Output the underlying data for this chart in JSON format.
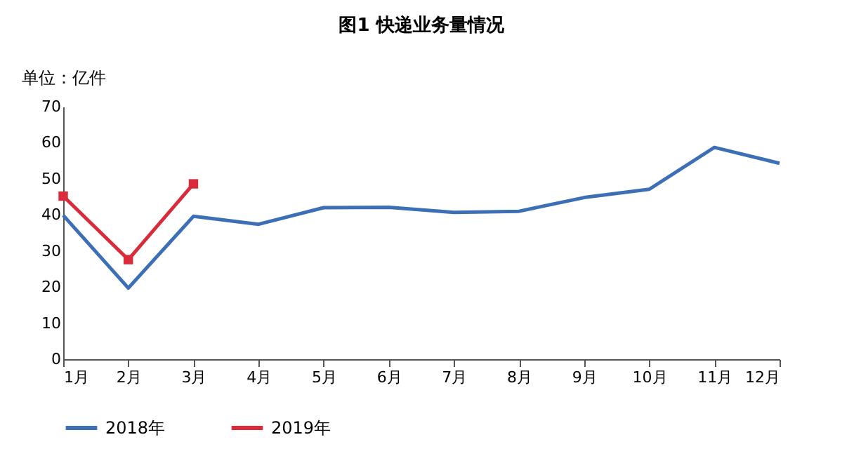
{
  "chart_data": {
    "type": "line",
    "title": "图1    快递业务量情况",
    "ylabel": "单位：亿件",
    "categories": [
      "1月",
      "2月",
      "3月",
      "4月",
      "5月",
      "6月",
      "7月",
      "8月",
      "9月",
      "10月",
      "11月",
      "12月"
    ],
    "series": [
      {
        "name": "2018年",
        "color": "#3d6fb6",
        "marker": "none",
        "values": [
          39.9,
          19.7,
          39.6,
          37.4,
          42.0,
          42.1,
          40.7,
          41.0,
          44.8,
          47.1,
          58.7,
          54.3
        ]
      },
      {
        "name": "2019年",
        "color": "#d92b3a",
        "marker": "square",
        "values": [
          45.2,
          27.6,
          48.6,
          null,
          null,
          null,
          null,
          null,
          null,
          null,
          null,
          null
        ]
      }
    ],
    "ylim": [
      0,
      70
    ],
    "yticks": [
      0,
      10,
      20,
      30,
      40,
      50,
      60,
      70
    ],
    "grid": false,
    "legend": "bottom"
  }
}
